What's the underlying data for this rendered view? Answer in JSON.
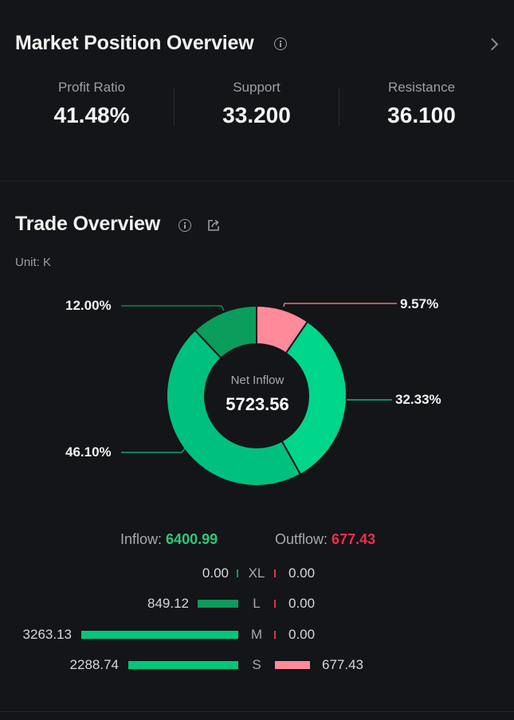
{
  "market": {
    "title": "Market Position Overview",
    "stats": [
      {
        "label": "Profit Ratio",
        "value": "41.48%"
      },
      {
        "label": "Support",
        "value": "33.200"
      },
      {
        "label": "Resistance",
        "value": "36.100"
      }
    ]
  },
  "trade": {
    "title": "Trade Overview",
    "unit": "Unit: K",
    "donut": {
      "center_label": "Net Inflow",
      "center_value": "5723.56"
    },
    "inflow_label": "Inflow:",
    "inflow_value": "6400.99",
    "outflow_label": "Outflow:",
    "outflow_value": "677.43",
    "rows": [
      {
        "size": "XL",
        "inflow": "0.00",
        "outflow": "0.00"
      },
      {
        "size": "L",
        "inflow": "849.12",
        "outflow": "0.00"
      },
      {
        "size": "M",
        "inflow": "3263.13",
        "outflow": "0.00"
      },
      {
        "size": "S",
        "inflow": "2288.74",
        "outflow": "677.43"
      }
    ]
  },
  "chart_data": {
    "type": "pie",
    "style": "donut",
    "categories": [
      "Outflow S",
      "Inflow S",
      "Inflow M",
      "Inflow L"
    ],
    "values": [
      9.57,
      32.33,
      46.1,
      12.0
    ],
    "labels": [
      "9.57%",
      "32.33%",
      "46.10%",
      "12.00%"
    ],
    "colors": [
      "#ff8a9a",
      "#00d68b",
      "#00c080",
      "#0a9d5c"
    ]
  },
  "colors": {
    "inflow": "#2ec77a",
    "outflow": "#ee2f4d",
    "background": "#141518"
  },
  "icons": [
    "info-icon",
    "chevron-right-icon",
    "share-icon"
  ]
}
